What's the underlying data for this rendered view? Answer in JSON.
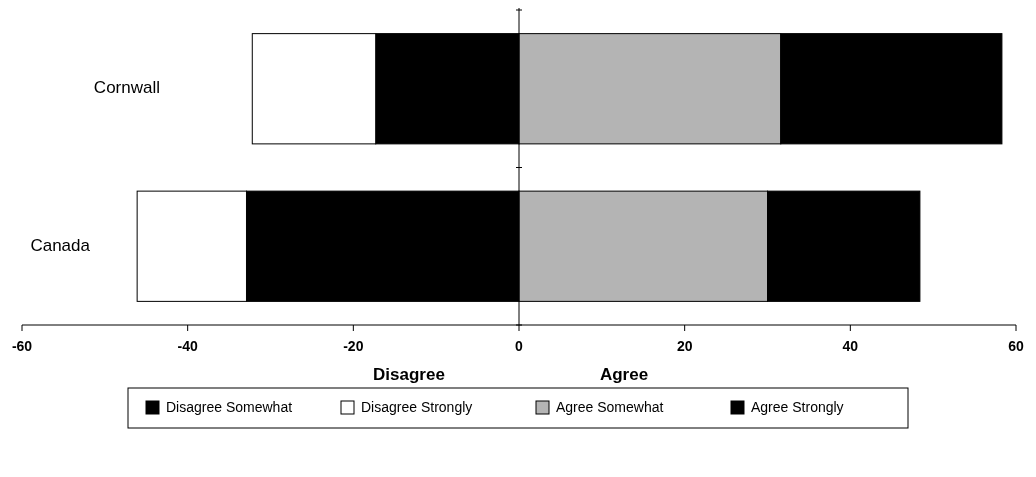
{
  "chart_data": {
    "type": "bar",
    "orientation": "horizontal",
    "stacked": true,
    "categories": [
      "Cornwall",
      "Canada"
    ],
    "series": [
      {
        "name": "Disagree Somewhat",
        "color": "#000000",
        "values": [
          -17.3,
          -32.9
        ]
      },
      {
        "name": "Disagree Strongly",
        "color": "#ffffff",
        "values": [
          -14.9,
          -13.2
        ]
      },
      {
        "name": "Agree Somewhat",
        "color": "#b4b4b4",
        "values": [
          31.6,
          30.0
        ]
      },
      {
        "name": "Agree Strongly",
        "color": "#000000",
        "values": [
          26.7,
          18.4
        ]
      }
    ],
    "xlim": [
      -60,
      60
    ],
    "xticks": [
      -60,
      -40,
      -20,
      0,
      20,
      40,
      60
    ],
    "annotations": [
      "Disagree",
      "Agree"
    ],
    "legend": "bottom"
  }
}
